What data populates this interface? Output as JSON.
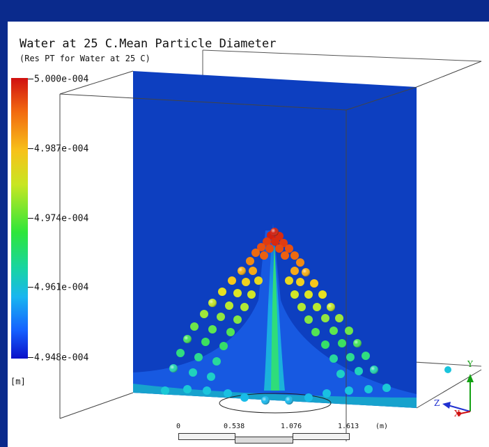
{
  "title": "Water at 25 C.Mean Particle Diameter",
  "subtitle": "(Res PT for Water at 25 C)",
  "legend": {
    "ticks": [
      "5.000e-004",
      "4.987e-004",
      "4.974e-004",
      "4.961e-004",
      "4.948e-004"
    ],
    "unit": "[m]",
    "colors": [
      "#d01010",
      "#f26a10",
      "#f7c21a",
      "#2ee63a",
      "#19b6f0",
      "#0b10c8"
    ]
  },
  "scale": {
    "labels": [
      "0",
      "0.538",
      "1.076",
      "1.613",
      "(m)"
    ]
  },
  "axes": {
    "y": "Y",
    "z": "Z",
    "x": "X"
  }
}
